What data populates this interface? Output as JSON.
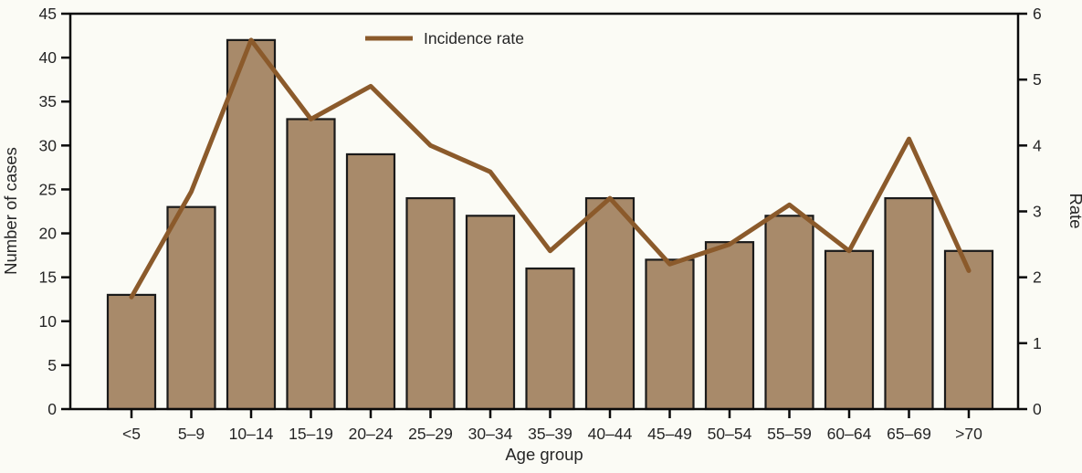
{
  "chart_data": {
    "type": "bar+line",
    "title": "",
    "categories": [
      "<5",
      "5–9",
      "10–14",
      "15–19",
      "20–24",
      "25–29",
      "30–34",
      "35–39",
      "40–44",
      "45–49",
      "50–54",
      "55–59",
      "60–64",
      "65–69",
      ">70"
    ],
    "series": [
      {
        "name": "Number of cases",
        "type": "bar",
        "axis": "left",
        "values": [
          13,
          23,
          42,
          33,
          29,
          24,
          22,
          16,
          24,
          17,
          19,
          22,
          18,
          24,
          18
        ]
      },
      {
        "name": "Incidence rate",
        "type": "line",
        "axis": "right",
        "values": [
          1.7,
          3.3,
          5.6,
          4.4,
          4.9,
          4.0,
          3.6,
          2.4,
          3.2,
          2.2,
          2.5,
          3.1,
          2.4,
          4.1,
          2.1
        ]
      }
    ],
    "xlabel": "Age group",
    "ylabel_left": "Number of cases",
    "ylabel_right": "Rate",
    "ylim_left": [
      0,
      45
    ],
    "yticks_left": [
      0,
      5,
      10,
      15,
      20,
      25,
      30,
      35,
      40,
      45
    ],
    "ylim_right": [
      0,
      6
    ],
    "yticks_right": [
      0,
      1,
      2,
      3,
      4,
      5,
      6
    ],
    "grid": "off",
    "legend": {
      "label": "Incidence rate",
      "position": "top-inside-left-of-center",
      "swatch": "line"
    },
    "colors": {
      "bar_fill": "#A88A6A",
      "bar_stroke": "#1A1A1A",
      "line": "#8B5A2B",
      "axis": "#0A0A0A",
      "text": "#262626",
      "background": "#FBFBF5"
    }
  }
}
